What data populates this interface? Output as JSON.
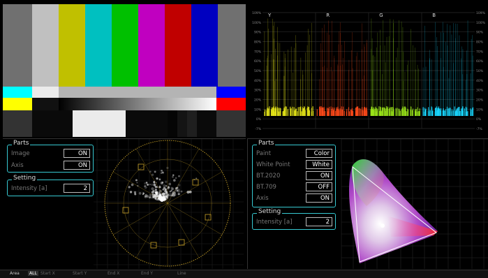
{
  "waveform": {
    "channels": [
      "Y",
      "R",
      "G",
      "B"
    ],
    "scale_left": [
      "109%",
      "100%",
      "90%",
      "80%",
      "70%",
      "60%",
      "50%",
      "40%",
      "30%",
      "20%",
      "10%",
      "0%",
      "-7%"
    ],
    "scale_right": [
      "109%",
      "100%",
      "90%",
      "80%",
      "70%",
      "60%",
      "50%",
      "40%",
      "30%",
      "20%",
      "10%",
      "0%",
      "-7%"
    ],
    "colors": {
      "Y": "#e6e619",
      "R": "#ff4a1a",
      "G": "#9be61a",
      "B": "#19d7ff"
    }
  },
  "vectorscope": {
    "parts_title": "Parts",
    "parts": [
      {
        "label": "Image",
        "value": "ON"
      },
      {
        "label": "Axis",
        "value": "ON"
      }
    ],
    "setting_title": "Setting",
    "settings": [
      {
        "label": "Intensity [a]",
        "value": "2"
      }
    ],
    "color": "#c9a227"
  },
  "cie": {
    "parts_title": "Parts",
    "parts": [
      {
        "label": "Paint",
        "value": "Color"
      },
      {
        "label": "White Point",
        "value": "White"
      },
      {
        "label": "BT.2020",
        "value": "ON"
      },
      {
        "label": "BT.709",
        "value": "OFF"
      },
      {
        "label": "Axis",
        "value": "ON"
      }
    ],
    "setting_title": "Setting",
    "settings": [
      {
        "label": "Intensity [a]",
        "value": "2"
      }
    ]
  },
  "bottom_bar": {
    "items": [
      "Area",
      "ALL",
      "Start X",
      "Start Y",
      "End X",
      "End Y",
      "Line"
    ]
  },
  "accent": "#37c9d2"
}
